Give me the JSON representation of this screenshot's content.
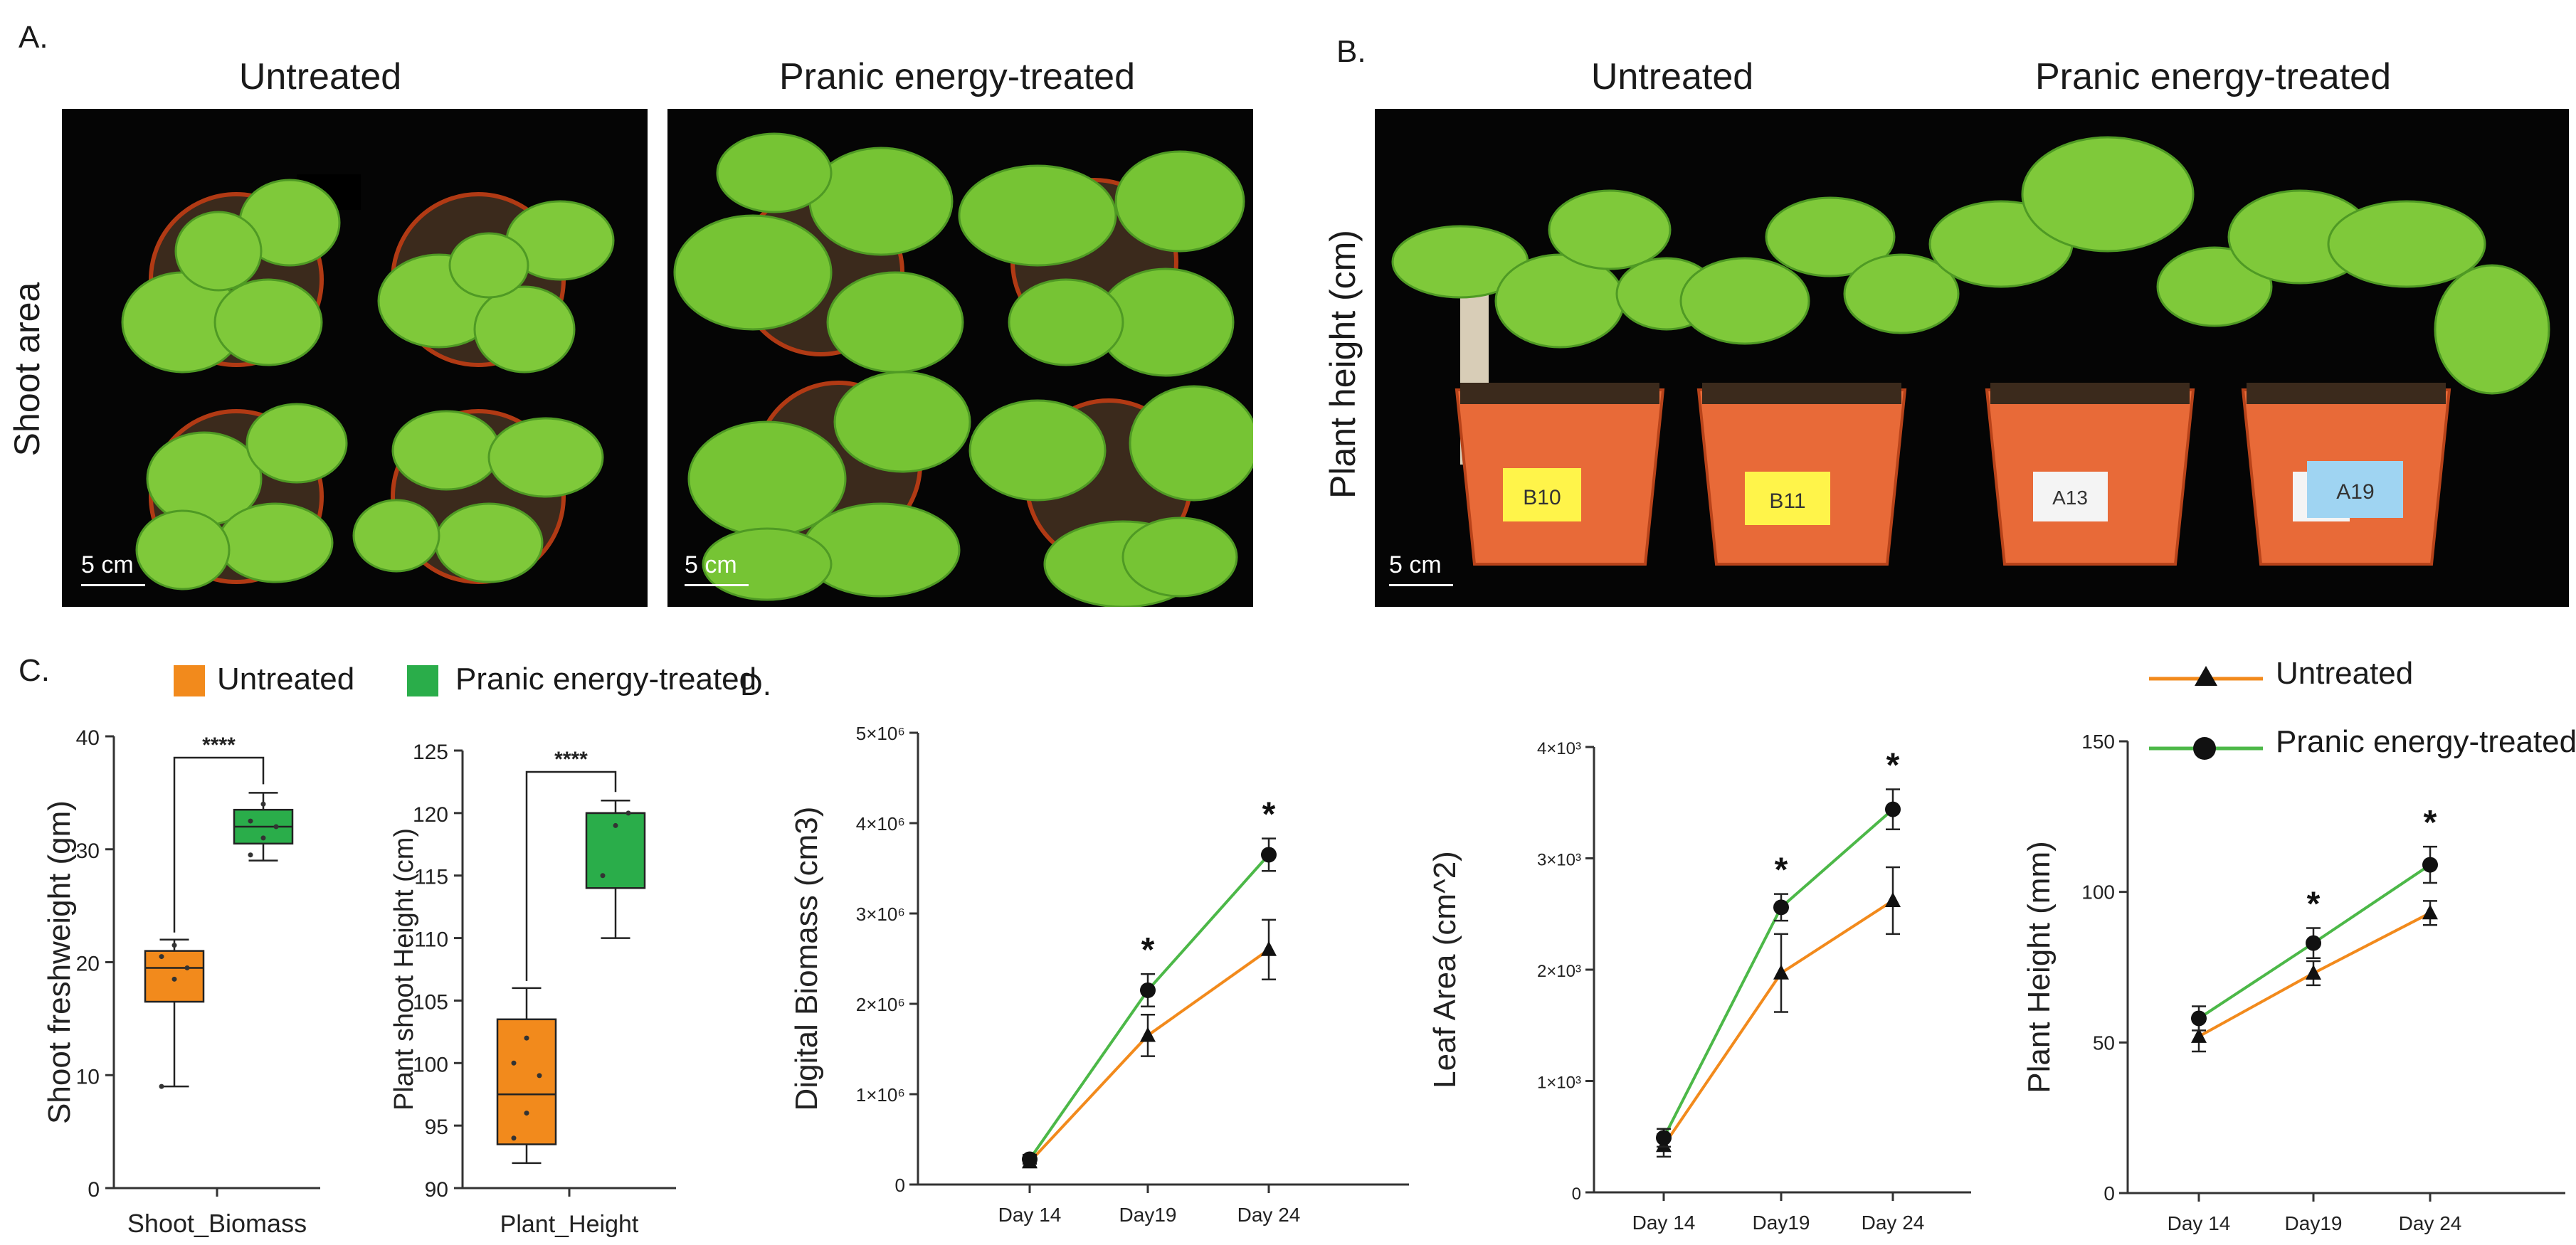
{
  "panels": {
    "a": {
      "letter": "A.",
      "title_left": "Untreated",
      "title_right": "Pranic energy-treated",
      "ylabel": "Shoot area",
      "scale_left": "5 cm",
      "scale_right": "5 cm"
    },
    "b": {
      "letter": "B.",
      "title_left": "Untreated",
      "title_right": "Pranic energy-treated",
      "ylabel": "Plant height (cm)",
      "scale": "5 cm",
      "pot_labels": [
        "B10",
        "B11",
        "A13",
        "A19"
      ]
    },
    "c": {
      "letter": "C.",
      "legend": [
        "Untreated",
        "Pranic energy-treated"
      ]
    },
    "d": {
      "letter": "D.",
      "legend": [
        "Untreated",
        "Pranic energy-treated"
      ]
    }
  },
  "colors": {
    "untreated": "#f28a1c",
    "treated": "#2aad4a",
    "treated_line": "#4cb848",
    "photo_bg": "#050505"
  },
  "chart_data": [
    {
      "type": "box",
      "id": "shoot_biomass",
      "categories": [
        "Shoot_Biomass"
      ],
      "ylabel": "Shoot freshweight (gm)",
      "ylim": [
        0,
        40
      ],
      "yticks": [
        "0",
        "10",
        "20",
        "30",
        "40"
      ],
      "significance": "****",
      "series": [
        {
          "name": "Untreated",
          "min": 9,
          "q1": 16.5,
          "median": 19.5,
          "q3": 21,
          "max": 22,
          "points": [
            9,
            18.5,
            19.5,
            20.5,
            21.5
          ]
        },
        {
          "name": "Pranic energy-treated",
          "min": 29,
          "q1": 30.5,
          "median": 32,
          "q3": 33.5,
          "max": 35,
          "points": [
            29.5,
            31,
            32,
            32.5,
            34
          ]
        }
      ]
    },
    {
      "type": "box",
      "id": "plant_height_box",
      "categories": [
        "Plant_Height"
      ],
      "ylabel": "Plant shoot Height (cm)",
      "ylim": [
        90,
        125
      ],
      "yticks": [
        "90",
        "95",
        "100",
        "105",
        "110",
        "115",
        "120",
        "125"
      ],
      "significance": "****",
      "series": [
        {
          "name": "Untreated",
          "min": 92,
          "q1": 93.5,
          "median": 97.5,
          "q3": 103.5,
          "max": 106,
          "points": [
            94,
            96,
            99,
            100,
            102
          ]
        },
        {
          "name": "Pranic energy-treated",
          "min": 110,
          "q1": 114,
          "median": 120,
          "q3": 120,
          "max": 121,
          "points": [
            115,
            119,
            120
          ]
        }
      ]
    },
    {
      "type": "line",
      "id": "digital_biomass",
      "ylabel": "Digital Biomass (cm3)",
      "categories": [
        "Day 14",
        "Day19",
        "Day 24"
      ],
      "ylim": [
        0,
        5000000
      ],
      "yticks": [
        "0",
        "1×10⁶",
        "2×10⁶",
        "3×10⁶",
        "4×10⁶",
        "5×10⁶"
      ],
      "stars": [
        "",
        "*",
        "*"
      ],
      "series": [
        {
          "name": "Untreated",
          "values": [
            250000,
            1650000,
            2600000
          ],
          "errors": [
            60000,
            230000,
            330000
          ]
        },
        {
          "name": "Pranic energy-treated",
          "values": [
            280000,
            2150000,
            3650000
          ],
          "errors": [
            50000,
            180000,
            180000
          ]
        }
      ]
    },
    {
      "type": "line",
      "id": "leaf_area",
      "ylabel": "Leaf Area (cm^2)",
      "categories": [
        "Day 14",
        "Day19",
        "Day 24"
      ],
      "ylim": [
        0,
        4000
      ],
      "yticks": [
        "0",
        "1×10³",
        "2×10³",
        "3×10³",
        "4×10³"
      ],
      "stars": [
        "",
        "*",
        "*"
      ],
      "series": [
        {
          "name": "Untreated",
          "values": [
            420,
            1970,
            2620
          ],
          "errors": [
            100,
            350,
            300
          ]
        },
        {
          "name": "Pranic energy-treated",
          "values": [
            490,
            2560,
            3440
          ],
          "errors": [
            80,
            120,
            180
          ]
        }
      ]
    },
    {
      "type": "line",
      "id": "plant_height_line",
      "ylabel": "Plant Height (mm)",
      "categories": [
        "Day 14",
        "Day19",
        "Day 24"
      ],
      "ylim": [
        0,
        150
      ],
      "yticks": [
        "0",
        "50",
        "100",
        "150"
      ],
      "stars": [
        "",
        "*",
        "*"
      ],
      "series": [
        {
          "name": "Untreated",
          "values": [
            52,
            73,
            93
          ],
          "errors": [
            5,
            4,
            4
          ]
        },
        {
          "name": "Pranic energy-treated",
          "values": [
            58,
            83,
            109
          ],
          "errors": [
            4,
            5,
            6
          ]
        }
      ]
    }
  ]
}
